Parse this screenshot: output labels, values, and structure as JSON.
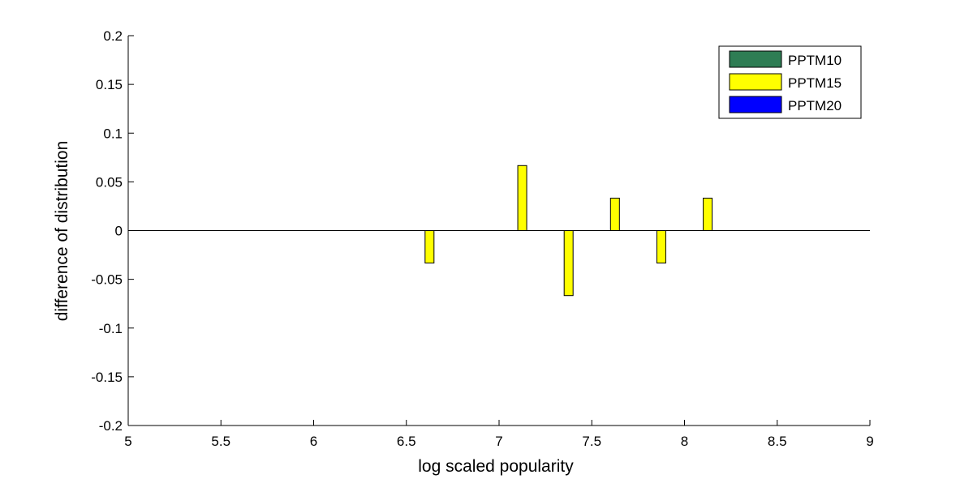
{
  "chart_data": {
    "type": "bar",
    "title": "",
    "xlabel": "log scaled popularity",
    "ylabel": "difference of distribution",
    "xlim": [
      5,
      9
    ],
    "ylim": [
      -0.2,
      0.2
    ],
    "xticks": [
      5,
      5.5,
      6,
      6.5,
      7,
      7.5,
      8,
      8.5,
      9
    ],
    "yticks": [
      -0.2,
      -0.15,
      -0.1,
      -0.05,
      0,
      0.05,
      0.1,
      0.15,
      0.2
    ],
    "xtick_labels": [
      "5",
      "5.5",
      "6",
      "6.5",
      "7",
      "7.5",
      "8",
      "8.5",
      "9"
    ],
    "ytick_labels": [
      "-0.2",
      "-0.15",
      "-0.1",
      "-0.05",
      "0",
      "0.05",
      "0.1",
      "0.15",
      "0.2"
    ],
    "grid": false,
    "legend_position": "top-right",
    "series": [
      {
        "name": "PPTM10",
        "color": "#2e7d54",
        "points": []
      },
      {
        "name": "PPTM15",
        "color": "#ffff00",
        "points": [
          {
            "x": 6.625,
            "y": -0.0333
          },
          {
            "x": 7.125,
            "y": 0.0667
          },
          {
            "x": 7.375,
            "y": -0.0667
          },
          {
            "x": 7.625,
            "y": 0.0333
          },
          {
            "x": 7.875,
            "y": -0.0333
          },
          {
            "x": 8.125,
            "y": 0.0333
          }
        ]
      },
      {
        "name": "PPTM20",
        "color": "#0000ff",
        "points": []
      }
    ]
  }
}
